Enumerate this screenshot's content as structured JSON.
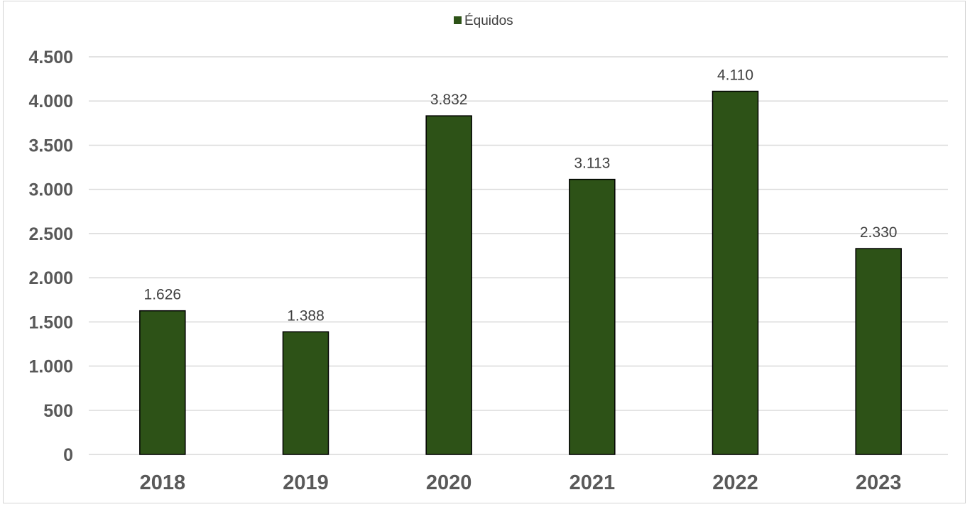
{
  "chart_data": {
    "type": "bar",
    "categories": [
      "2018",
      "2019",
      "2020",
      "2021",
      "2022",
      "2023"
    ],
    "series": [
      {
        "name": "Équidos",
        "values": [
          1626,
          1388,
          3832,
          3113,
          4110,
          2330
        ],
        "color": "#2d5217"
      }
    ],
    "data_labels": [
      "1.626",
      "1.388",
      "3.832",
      "3.113",
      "4.110",
      "2.330"
    ],
    "y_ticks": [
      {
        "value": 0,
        "label": "0"
      },
      {
        "value": 500,
        "label": "500"
      },
      {
        "value": 1000,
        "label": "1.000"
      },
      {
        "value": 1500,
        "label": "1.500"
      },
      {
        "value": 2000,
        "label": "2.000"
      },
      {
        "value": 2500,
        "label": "2.500"
      },
      {
        "value": 3000,
        "label": "3.000"
      },
      {
        "value": 3500,
        "label": "3.500"
      },
      {
        "value": 4000,
        "label": "4.000"
      },
      {
        "value": 4500,
        "label": "4.500"
      }
    ],
    "ylim": [
      0,
      4500
    ],
    "title": "",
    "xlabel": "",
    "ylabel": "",
    "grid": true,
    "legend_position": "top-center"
  }
}
